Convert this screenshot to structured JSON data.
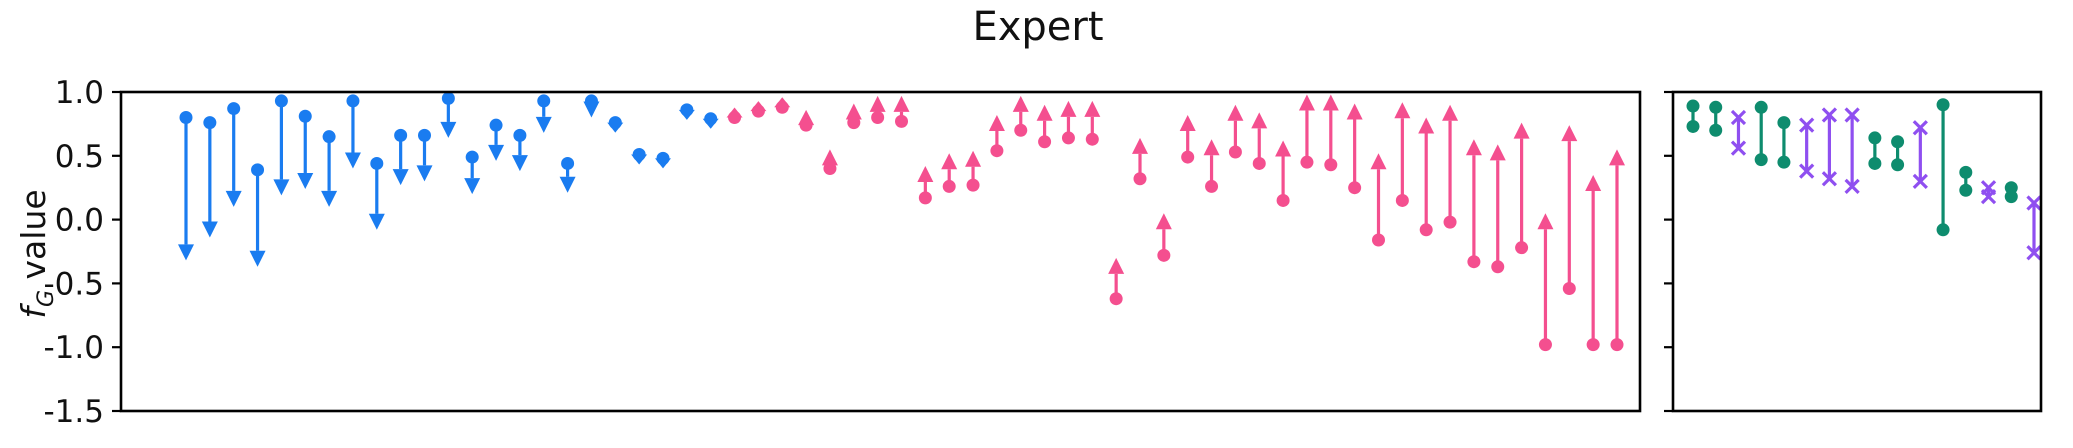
{
  "chart_data": {
    "type": "arrow",
    "title": "Expert",
    "ylabel_main": "f",
    "ylabel_sub": "G",
    "ylabel_rest": " value",
    "ylim": [
      -1.5,
      1.0
    ],
    "yticks": [
      1.0,
      0.5,
      0.0,
      -0.5,
      -1.0,
      -1.5
    ],
    "ytick_labels": [
      "1.0",
      "0.5",
      "0.0",
      "-0.5",
      "-1.0",
      "-1.5"
    ],
    "colors": {
      "decrease": "#1a7cf0",
      "increase": "#f44f8f",
      "green": "#0e8c6e",
      "purple": "#8f4ff0"
    },
    "panels": [
      {
        "name": "main",
        "pairs": [
          {
            "from": 0.8,
            "to": -0.32,
            "group": "decrease"
          },
          {
            "from": 0.76,
            "to": -0.14,
            "group": "decrease"
          },
          {
            "from": 0.87,
            "to": 0.1,
            "group": "decrease"
          },
          {
            "from": 0.39,
            "to": -0.37,
            "group": "decrease"
          },
          {
            "from": 0.93,
            "to": 0.19,
            "group": "decrease"
          },
          {
            "from": 0.81,
            "to": 0.24,
            "group": "decrease"
          },
          {
            "from": 0.65,
            "to": 0.1,
            "group": "decrease"
          },
          {
            "from": 0.93,
            "to": 0.4,
            "group": "decrease"
          },
          {
            "from": 0.44,
            "to": -0.08,
            "group": "decrease"
          },
          {
            "from": 0.66,
            "to": 0.27,
            "group": "decrease"
          },
          {
            "from": 0.66,
            "to": 0.3,
            "group": "decrease"
          },
          {
            "from": 0.95,
            "to": 0.64,
            "group": "decrease"
          },
          {
            "from": 0.49,
            "to": 0.2,
            "group": "decrease"
          },
          {
            "from": 0.74,
            "to": 0.46,
            "group": "decrease"
          },
          {
            "from": 0.66,
            "to": 0.38,
            "group": "decrease"
          },
          {
            "from": 0.93,
            "to": 0.68,
            "group": "decrease"
          },
          {
            "from": 0.44,
            "to": 0.21,
            "group": "decrease"
          },
          {
            "from": 0.93,
            "to": 0.8,
            "group": "decrease"
          },
          {
            "from": 0.76,
            "to": 0.69,
            "group": "decrease"
          },
          {
            "from": 0.51,
            "to": 0.45,
            "group": "decrease"
          },
          {
            "from": 0.48,
            "to": 0.42,
            "group": "decrease"
          },
          {
            "from": 0.86,
            "to": 0.82,
            "group": "decrease"
          },
          {
            "from": 0.79,
            "to": 0.74,
            "group": "decrease"
          },
          {
            "from": 0.8,
            "to": 0.83,
            "group": "increase"
          },
          {
            "from": 0.85,
            "to": 0.89,
            "group": "increase"
          },
          {
            "from": 0.88,
            "to": 0.93,
            "group": "increase"
          },
          {
            "from": 0.74,
            "to": 0.86,
            "group": "increase"
          },
          {
            "from": 0.4,
            "to": 0.55,
            "group": "increase"
          },
          {
            "from": 0.76,
            "to": 0.91,
            "group": "increase"
          },
          {
            "from": 0.8,
            "to": 0.97,
            "group": "increase"
          },
          {
            "from": 0.77,
            "to": 0.97,
            "group": "increase"
          },
          {
            "from": 0.17,
            "to": 0.42,
            "group": "increase"
          },
          {
            "from": 0.26,
            "to": 0.52,
            "group": "increase"
          },
          {
            "from": 0.27,
            "to": 0.54,
            "group": "increase"
          },
          {
            "from": 0.54,
            "to": 0.82,
            "group": "increase"
          },
          {
            "from": 0.7,
            "to": 0.97,
            "group": "increase"
          },
          {
            "from": 0.61,
            "to": 0.9,
            "group": "increase"
          },
          {
            "from": 0.64,
            "to": 0.93,
            "group": "increase"
          },
          {
            "from": 0.63,
            "to": 0.93,
            "group": "increase"
          },
          {
            "from": -0.62,
            "to": -0.3,
            "group": "increase"
          },
          {
            "from": 0.32,
            "to": 0.64,
            "group": "increase"
          },
          {
            "from": -0.28,
            "to": 0.05,
            "group": "increase"
          },
          {
            "from": 0.49,
            "to": 0.82,
            "group": "increase"
          },
          {
            "from": 0.26,
            "to": 0.63,
            "group": "increase"
          },
          {
            "from": 0.53,
            "to": 0.9,
            "group": "increase"
          },
          {
            "from": 0.44,
            "to": 0.84,
            "group": "increase"
          },
          {
            "from": 0.15,
            "to": 0.62,
            "group": "increase"
          },
          {
            "from": 0.45,
            "to": 0.98,
            "group": "increase"
          },
          {
            "from": 0.43,
            "to": 0.98,
            "group": "increase"
          },
          {
            "from": 0.25,
            "to": 0.91,
            "group": "increase"
          },
          {
            "from": -0.16,
            "to": 0.52,
            "group": "increase"
          },
          {
            "from": 0.15,
            "to": 0.92,
            "group": "increase"
          },
          {
            "from": -0.08,
            "to": 0.8,
            "group": "increase"
          },
          {
            "from": -0.02,
            "to": 0.9,
            "group": "increase"
          },
          {
            "from": -0.33,
            "to": 0.63,
            "group": "increase"
          },
          {
            "from": -0.37,
            "to": 0.59,
            "group": "increase"
          },
          {
            "from": -0.22,
            "to": 0.76,
            "group": "increase"
          },
          {
            "from": -0.98,
            "to": 0.05,
            "group": "increase"
          },
          {
            "from": -0.54,
            "to": 0.74,
            "group": "increase"
          },
          {
            "from": -0.98,
            "to": 0.35,
            "group": "increase"
          },
          {
            "from": -0.98,
            "to": 0.55,
            "group": "increase"
          }
        ]
      },
      {
        "name": "side",
        "pairs": [
          {
            "from": 0.73,
            "to": 0.89,
            "group": "green",
            "style": "dumbbell"
          },
          {
            "from": 0.7,
            "to": 0.88,
            "group": "green",
            "style": "dumbbell"
          },
          {
            "from": 0.56,
            "to": 0.8,
            "group": "purple",
            "style": "cross"
          },
          {
            "from": 0.47,
            "to": 0.88,
            "group": "green",
            "style": "dumbbell"
          },
          {
            "from": 0.45,
            "to": 0.76,
            "group": "green",
            "style": "dumbbell"
          },
          {
            "from": 0.38,
            "to": 0.74,
            "group": "purple",
            "style": "cross"
          },
          {
            "from": 0.32,
            "to": 0.82,
            "group": "purple",
            "style": "cross"
          },
          {
            "from": 0.26,
            "to": 0.82,
            "group": "purple",
            "style": "cross"
          },
          {
            "from": 0.44,
            "to": 0.64,
            "group": "green",
            "style": "dumbbell"
          },
          {
            "from": 0.43,
            "to": 0.61,
            "group": "green",
            "style": "dumbbell"
          },
          {
            "from": 0.3,
            "to": 0.72,
            "group": "purple",
            "style": "cross"
          },
          {
            "from": -0.08,
            "to": 0.9,
            "group": "green",
            "style": "dumbbell"
          },
          {
            "from": 0.23,
            "to": 0.37,
            "group": "green",
            "style": "dumbbell"
          },
          {
            "from": 0.18,
            "to": 0.25,
            "group": "purple",
            "style": "cross"
          },
          {
            "from": 0.18,
            "to": 0.25,
            "group": "green",
            "style": "dumbbell"
          },
          {
            "from": -0.26,
            "to": 0.13,
            "group": "purple",
            "style": "cross"
          }
        ]
      }
    ]
  }
}
